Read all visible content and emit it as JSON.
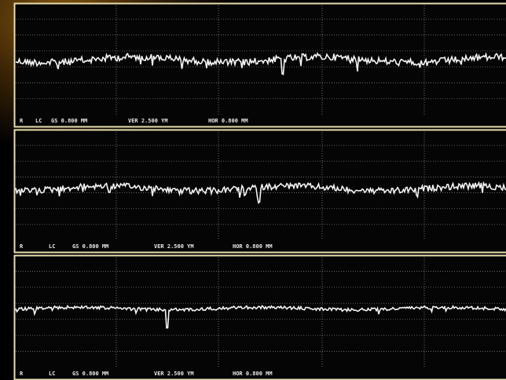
{
  "panels": [
    {
      "labels": [
        "R",
        "LC",
        "GS 0.800 MM",
        "VER 2.500 YM",
        "HOR 0.800 MM"
      ]
    },
    {
      "labels": [
        "R",
        "LC",
        "GS 0.800 MM",
        "VER 2.500 YM",
        "HOR 0.800 MM"
      ]
    },
    {
      "labels": [
        "R",
        "LC",
        "GS 0.800 MM",
        "VER 2.500 YM",
        "HOR 0.800 MM"
      ]
    }
  ]
}
